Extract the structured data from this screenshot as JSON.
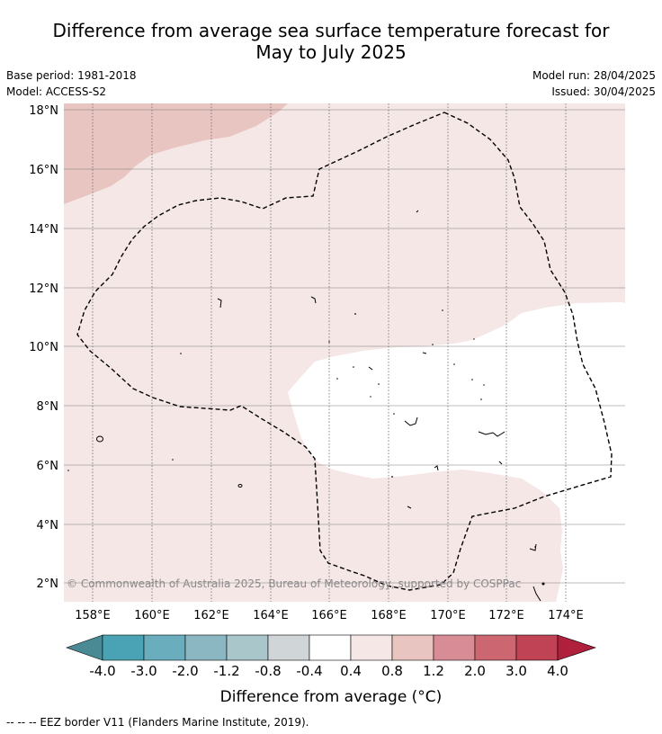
{
  "title": {
    "line1": "Difference from average sea surface temperature forecast for",
    "line2": "May to July 2025"
  },
  "meta": {
    "base_period": "Base period: 1981-2018",
    "model": "Model: ACCESS-S2",
    "model_run": "Model run: 28/04/2025",
    "issued": "Issued: 30/04/2025"
  },
  "map": {
    "lat_labels": [
      "18°N",
      "16°N",
      "14°N",
      "12°N",
      "10°N",
      "8°N",
      "6°N",
      "4°N",
      "2°N"
    ],
    "lon_labels": [
      "158°E",
      "160°E",
      "162°E",
      "164°E",
      "166°E",
      "168°E",
      "170°E",
      "172°E",
      "174°E"
    ],
    "copyright": "© Commonwealth of Australia 2025, Bureau of Meteorology, supported by COSPPac",
    "colors": {
      "anomaly_0_4_to_0_8": "#f5e7e6",
      "anomaly_0_8_to_1_2": "#e8c5c1",
      "anomaly_neutral": "#ffffff",
      "eez_border": "#000000"
    }
  },
  "legend": {
    "tick_labels": [
      "-4.0",
      "-3.0",
      "-2.0",
      "-1.2",
      "-0.8",
      "-0.4",
      "0.4",
      "0.8",
      "1.2",
      "2.0",
      "3.0",
      "4.0"
    ],
    "colors": [
      "#4a8a95",
      "#4aa3b5",
      "#6aaebe",
      "#8bb7c2",
      "#a9c6cb",
      "#d0d6d8",
      "#ffffff",
      "#f5e7e6",
      "#e8c5c1",
      "#d88d96",
      "#cc6670",
      "#c04355",
      "#b01f3c"
    ],
    "label": "Difference from average (°C)"
  },
  "footnote": "-- -- -- EEZ border V11 (Flanders Marine Institute, 2019)."
}
